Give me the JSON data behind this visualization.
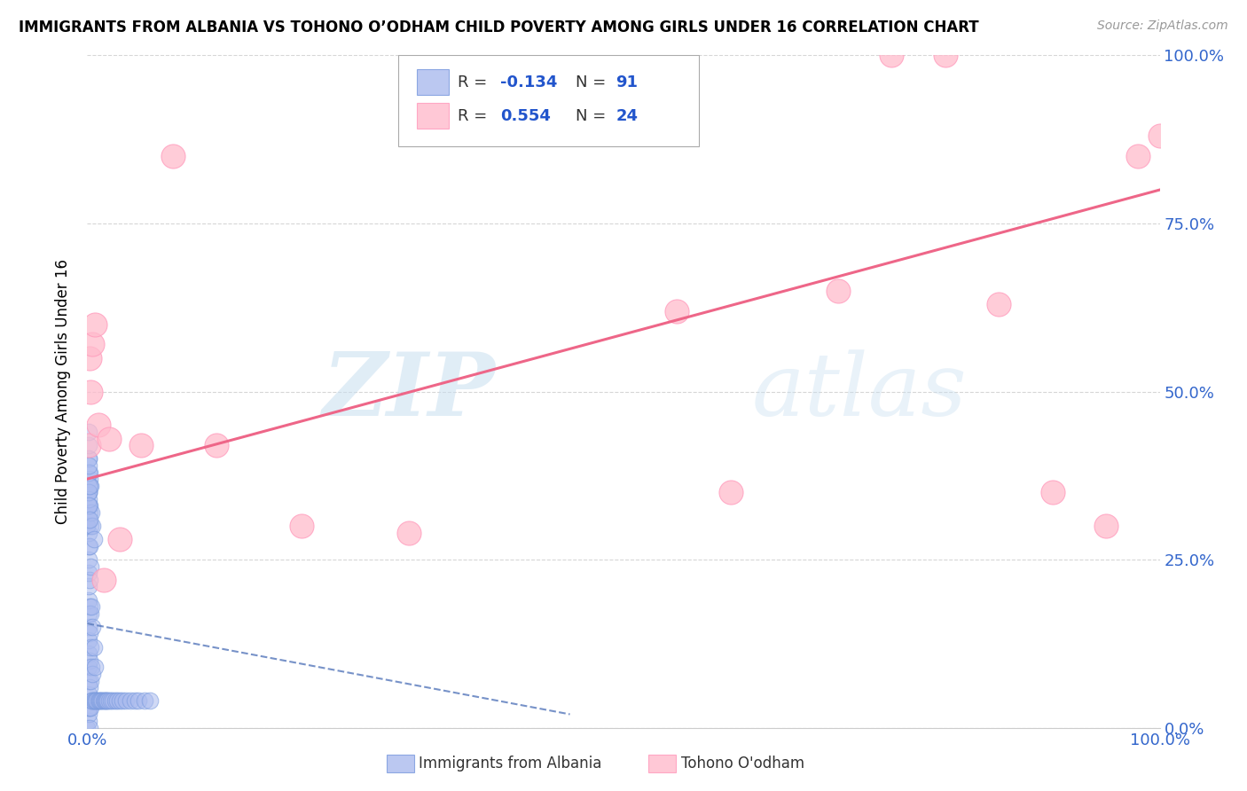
{
  "title": "IMMIGRANTS FROM ALBANIA VS TOHONO O’ODHAM CHILD POVERTY AMONG GIRLS UNDER 16 CORRELATION CHART",
  "source": "Source: ZipAtlas.com",
  "ylabel": "Child Poverty Among Girls Under 16",
  "xlim": [
    0,
    1.0
  ],
  "ylim": [
    0,
    1.0
  ],
  "ytick_labels": [
    "0.0%",
    "25.0%",
    "50.0%",
    "75.0%",
    "100.0%"
  ],
  "ytick_positions": [
    0.0,
    0.25,
    0.5,
    0.75,
    1.0
  ],
  "grid_color": "#cccccc",
  "watermark_zip": "ZIP",
  "watermark_atlas": "atlas",
  "legend_blue_r": "-0.134",
  "legend_blue_n": "91",
  "legend_pink_r": "0.554",
  "legend_pink_n": "24",
  "blue_color": "#7799dd",
  "pink_color": "#ff99bb",
  "blue_fill": "#aabbee",
  "pink_fill": "#ffbbcc",
  "blue_line_color": "#5577bb",
  "pink_line_color": "#ee6688",
  "blue_scatter_x": [
    0.0,
    0.001,
    0.001,
    0.001,
    0.001,
    0.001,
    0.001,
    0.001,
    0.001,
    0.001,
    0.001,
    0.001,
    0.001,
    0.001,
    0.001,
    0.001,
    0.001,
    0.001,
    0.001,
    0.001,
    0.002,
    0.002,
    0.002,
    0.002,
    0.002,
    0.002,
    0.002,
    0.002,
    0.002,
    0.002,
    0.003,
    0.003,
    0.003,
    0.003,
    0.003,
    0.004,
    0.004,
    0.004,
    0.005,
    0.005,
    0.005,
    0.006,
    0.006,
    0.007,
    0.007,
    0.008,
    0.009,
    0.01,
    0.011,
    0.012,
    0.013,
    0.014,
    0.015,
    0.016,
    0.017,
    0.018,
    0.019,
    0.02,
    0.022,
    0.024,
    0.026,
    0.028,
    0.03,
    0.033,
    0.036,
    0.04,
    0.044,
    0.048,
    0.053,
    0.058,
    0.0,
    0.001,
    0.001,
    0.002,
    0.002,
    0.003,
    0.003,
    0.004,
    0.005,
    0.006,
    0.001,
    0.001,
    0.001,
    0.001,
    0.001,
    0.001,
    0.001,
    0.001,
    0.001,
    0.002,
    0.002
  ],
  "blue_scatter_y": [
    0.0,
    0.01,
    0.02,
    0.03,
    0.05,
    0.07,
    0.09,
    0.11,
    0.13,
    0.15,
    0.17,
    0.19,
    0.21,
    0.23,
    0.25,
    0.27,
    0.29,
    0.31,
    0.33,
    0.35,
    0.0,
    0.03,
    0.06,
    0.1,
    0.14,
    0.18,
    0.22,
    0.27,
    0.32,
    0.37,
    0.03,
    0.07,
    0.12,
    0.17,
    0.24,
    0.04,
    0.09,
    0.18,
    0.04,
    0.08,
    0.15,
    0.04,
    0.12,
    0.04,
    0.09,
    0.04,
    0.04,
    0.04,
    0.04,
    0.04,
    0.04,
    0.04,
    0.04,
    0.04,
    0.04,
    0.04,
    0.04,
    0.04,
    0.04,
    0.04,
    0.04,
    0.04,
    0.04,
    0.04,
    0.04,
    0.04,
    0.04,
    0.04,
    0.04,
    0.04,
    0.3,
    0.35,
    0.4,
    0.33,
    0.38,
    0.3,
    0.36,
    0.32,
    0.3,
    0.28,
    0.4,
    0.42,
    0.44,
    0.36,
    0.38,
    0.34,
    0.39,
    0.35,
    0.33,
    0.36,
    0.31
  ],
  "pink_scatter_x": [
    0.001,
    0.002,
    0.003,
    0.005,
    0.007,
    0.01,
    0.015,
    0.02,
    0.03,
    0.05,
    0.08,
    0.12,
    0.2,
    0.3,
    0.55,
    0.6,
    0.7,
    0.75,
    0.8,
    0.85,
    0.9,
    0.95,
    0.98,
    1.0
  ],
  "pink_scatter_y": [
    0.42,
    0.55,
    0.5,
    0.57,
    0.6,
    0.45,
    0.22,
    0.43,
    0.28,
    0.42,
    0.85,
    0.42,
    0.3,
    0.29,
    0.62,
    0.35,
    0.65,
    1.0,
    1.0,
    0.63,
    0.35,
    0.3,
    0.85,
    0.88
  ],
  "blue_trendline_x": [
    0.0,
    0.45
  ],
  "blue_trendline_y": [
    0.155,
    0.02
  ],
  "pink_trendline_x": [
    0.0,
    1.0
  ],
  "pink_trendline_y": [
    0.37,
    0.8
  ]
}
